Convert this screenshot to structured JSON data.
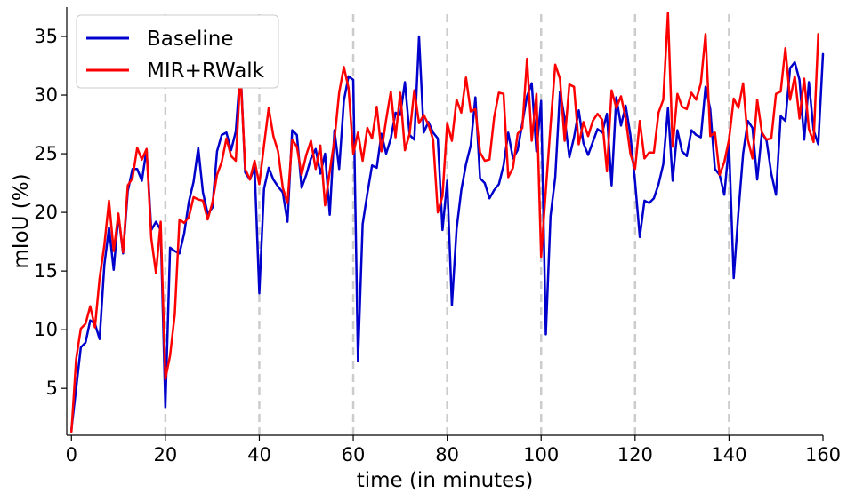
{
  "chart_data": {
    "type": "line",
    "title": "",
    "xlabel": "time (in minutes)",
    "ylabel": "mIoU (%)",
    "xlim": [
      -1,
      160
    ],
    "ylim": [
      1,
      37.5
    ],
    "xticks": [
      0,
      20,
      40,
      60,
      80,
      100,
      120,
      140,
      160
    ],
    "yticks": [
      5,
      10,
      15,
      20,
      25,
      30,
      35
    ],
    "vlines": [
      20,
      40,
      60,
      80,
      100,
      120,
      140
    ],
    "grid": false,
    "legend_position": "top-left",
    "colors": {
      "vline": "#cccccc"
    },
    "series": [
      {
        "name": "Baseline",
        "color": "#0000cc",
        "values": [
          1.5,
          5.0,
          8.5,
          8.9,
          10.8,
          10.5,
          9.2,
          15.5,
          18.7,
          15.1,
          19.8,
          16.5,
          21.8,
          23.7,
          23.7,
          22.7,
          25.4,
          18.5,
          19.2,
          18.5,
          3.4,
          17.0,
          16.7,
          16.5,
          18.2,
          20.9,
          22.6,
          25.5,
          21.7,
          19.9,
          20.4,
          25.2,
          26.6,
          26.8,
          25.3,
          26.9,
          32.3,
          23.4,
          22.8,
          23.8,
          13.1,
          22.0,
          23.8,
          22.8,
          22.2,
          21.7,
          19.2,
          27.0,
          26.6,
          22.1,
          23.2,
          24.6,
          25.4,
          23.3,
          25.0,
          19.8,
          27.0,
          23.7,
          29.5,
          31.6,
          31.3,
          7.3,
          19.0,
          21.6,
          24.0,
          23.8,
          26.7,
          25.0,
          26.3,
          28.5,
          28.3,
          31.1,
          26.6,
          26.2,
          35.0,
          26.8,
          27.7,
          26.8,
          26.3,
          18.5,
          22.7,
          12.1,
          18.6,
          21.9,
          24.1,
          25.7,
          29.8,
          22.9,
          22.5,
          21.2,
          21.9,
          22.4,
          24.0,
          26.8,
          24.6,
          25.3,
          27.6,
          29.9,
          31.0,
          25.2,
          29.5,
          9.6,
          19.7,
          23.0,
          30.3,
          28.0,
          24.7,
          26.4,
          28.7,
          25.9,
          24.9,
          26.0,
          27.1,
          26.8,
          28.4,
          22.3,
          29.8,
          27.4,
          29.1,
          26.6,
          22.6,
          17.9,
          21.0,
          20.8,
          21.2,
          22.4,
          24.1,
          28.9,
          22.7,
          27.0,
          25.2,
          24.8,
          27.0,
          26.6,
          26.4,
          30.7,
          28.8,
          23.7,
          23.2,
          21.5,
          25.8,
          14.4,
          20.0,
          25.0,
          27.8,
          27.2,
          22.8,
          26.8,
          26.1,
          23.3,
          21.5,
          28.2,
          27.8,
          32.3,
          32.8,
          31.3,
          26.2,
          31.1,
          27.0,
          25.8,
          33.5
        ]
      },
      {
        "name": "MIR+RWalk",
        "color": "#ff0000",
        "values": [
          1.3,
          7.5,
          10.1,
          10.5,
          12.0,
          10.2,
          14.4,
          17.2,
          21.0,
          16.7,
          19.9,
          16.6,
          22.3,
          22.9,
          25.5,
          24.5,
          25.4,
          17.8,
          14.8,
          19.2,
          5.8,
          7.8,
          11.3,
          19.4,
          19.1,
          19.6,
          21.3,
          21.1,
          21.0,
          19.4,
          20.8,
          23.2,
          24.3,
          26.3,
          24.8,
          24.4,
          31.9,
          23.7,
          22.8,
          24.4,
          22.4,
          25.7,
          28.9,
          26.5,
          25.2,
          22.1,
          20.8,
          26.2,
          25.6,
          23.2,
          24.9,
          26.1,
          23.7,
          25.7,
          20.6,
          23.5,
          26.2,
          30.2,
          32.4,
          30.6,
          25.0,
          26.8,
          24.4,
          27.2,
          26.3,
          29.0,
          25.2,
          27.9,
          30.3,
          26.4,
          30.2,
          25.3,
          26.7,
          30.4,
          27.6,
          28.3,
          27.5,
          26.2,
          20.0,
          21.4,
          27.6,
          26.1,
          29.6,
          28.5,
          31.5,
          28.6,
          28.8,
          25.1,
          24.4,
          24.5,
          28.1,
          30.2,
          30.1,
          23.0,
          23.8,
          26.7,
          27.2,
          33.1,
          26.1,
          30.1,
          16.2,
          21.9,
          27.4,
          32.6,
          31.4,
          26.1,
          30.9,
          30.7,
          25.8,
          27.7,
          26.5,
          27.8,
          28.4,
          27.9,
          23.5,
          30.4,
          28.9,
          29.9,
          28.0,
          25.0,
          23.7,
          27.8,
          24.6,
          25.1,
          25.1,
          28.5,
          29.6,
          37.0,
          25.6,
          30.1,
          29.0,
          28.8,
          30.2,
          29.6,
          31.0,
          35.2,
          26.5,
          26.8,
          23.2,
          24.3,
          26.2,
          29.7,
          28.9,
          31.0,
          26.2,
          24.6,
          29.6,
          26.8,
          26.2,
          26.3,
          30.1,
          30.3,
          34.0,
          29.6,
          31.6,
          28.0,
          31.4,
          27.1,
          26.0,
          35.2
        ]
      }
    ]
  }
}
